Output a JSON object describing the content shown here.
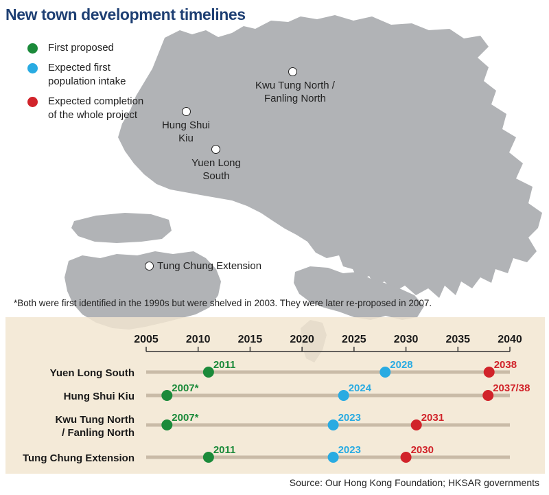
{
  "title": "New town development timelines",
  "legend": [
    {
      "label": "First proposed",
      "color": "#1b8a3a"
    },
    {
      "label": "Expected first population intake",
      "color": "#29abe2"
    },
    {
      "label": "Expected completion of the whole project",
      "color": "#d1232a"
    }
  ],
  "places": [
    {
      "name_lines": [
        "Kwu Tung North /",
        "Fanling North"
      ]
    },
    {
      "name_lines": [
        "Hung Shui",
        "Kiu"
      ]
    },
    {
      "name_lines": [
        "Yuen Long",
        "South"
      ]
    },
    {
      "name_lines": [
        "Tung Chung Extension"
      ]
    }
  ],
  "footnote": "*Both were first identified in the 1990s but were shelved in 2003. They were later re-proposed in 2007.",
  "source": "Source: Our Hong Kong Foundation; HKSAR governments",
  "colors": {
    "land": "#b1b3b6",
    "title": "#1e3f73",
    "panel": "#f2e6d0",
    "bar": "#c9bba7",
    "proposed": "#1b8a3a",
    "intake": "#29abe2",
    "completion": "#d1232a"
  },
  "timeline": {
    "axis_ticks": [
      "2005",
      "2010",
      "2015",
      "2020",
      "2025",
      "2030",
      "2035",
      "2040"
    ],
    "axis_range": [
      2005,
      2040
    ],
    "rows": [
      {
        "name_lines": [
          "Yuen Long South"
        ],
        "proposed": {
          "year": 2011,
          "label": "2011"
        },
        "intake": {
          "year": 2028,
          "label": "2028"
        },
        "completion": {
          "year": 2038,
          "label": "2038"
        }
      },
      {
        "name_lines": [
          "Hung Shui Kiu"
        ],
        "proposed": {
          "year": 2007,
          "label": "2007*"
        },
        "intake": {
          "year": 2024,
          "label": "2024"
        },
        "completion": {
          "year": 2037.9,
          "label": "2037/38"
        }
      },
      {
        "name_lines": [
          "Kwu Tung North",
          "/ Fanling North"
        ],
        "proposed": {
          "year": 2007,
          "label": "2007*"
        },
        "intake": {
          "year": 2023,
          "label": "2023"
        },
        "completion": {
          "year": 2031,
          "label": "2031"
        }
      },
      {
        "name_lines": [
          "Tung Chung Extension"
        ],
        "proposed": {
          "year": 2011,
          "label": "2011"
        },
        "intake": {
          "year": 2023,
          "label": "2023"
        },
        "completion": {
          "year": 2030,
          "label": "2030"
        }
      }
    ]
  }
}
